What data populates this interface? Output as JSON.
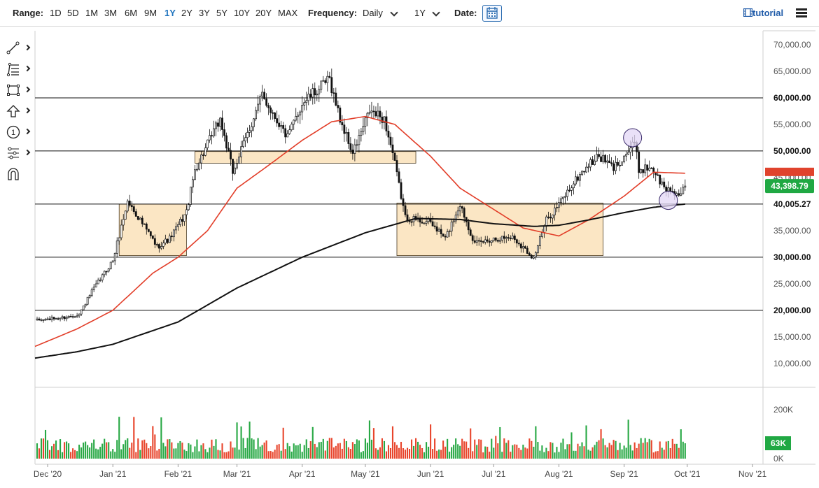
{
  "toolbar_top": {
    "range_label": "Range:",
    "ranges": [
      "1D",
      "5D",
      "1M",
      "3M",
      "6M",
      "9M",
      "1Y",
      "2Y",
      "3Y",
      "5Y",
      "10Y",
      "20Y",
      "MAX"
    ],
    "active_range": "1Y",
    "frequency_label": "Frequency:",
    "frequency_value": "Daily",
    "period_value": "1Y",
    "date_label": "Date:",
    "tutorial_label": "tutorial"
  },
  "drawing_tools": [
    "line-tool",
    "fib-tool",
    "rectangle-tool",
    "arrow-tool",
    "annotation-tool",
    "pattern-tool",
    "magnet-tool"
  ],
  "annotation_tool_label": "1",
  "colors": {
    "up": "#27a844",
    "down": "#e8452c",
    "ma50": "#e23d28",
    "ma200": "#111111",
    "box_fill": "#fbe6c4",
    "box_stroke": "#4a3a20",
    "circle_fill": "#e3d7f5",
    "circle_stroke": "#3a2b6a",
    "last_price_bg": "#20a843",
    "resistance_tag_bg": "#e0432d",
    "volume_tag_bg": "#20a843"
  },
  "chart_data": {
    "type": "candlestick",
    "title": "",
    "x_ticks": [
      "Dec '20",
      "Jan '21",
      "Feb '21",
      "Mar '21",
      "Apr '21",
      "May '21",
      "Jun '21",
      "Jul '21",
      "Aug '21",
      "Sep '21",
      "Oct '21",
      "Nov '21"
    ],
    "x_tick_dates": [
      "2020-12-01",
      "2021-01-01",
      "2021-02-01",
      "2021-03-01",
      "2021-04-01",
      "2021-05-01",
      "2021-06-01",
      "2021-07-01",
      "2021-08-01",
      "2021-09-01",
      "2021-10-01",
      "2021-11-01"
    ],
    "x_range": [
      "2020-11-25",
      "2021-11-06"
    ],
    "y_ticks": [
      "10,000.00",
      "15,000.00",
      "20,000.00",
      "25,000.00",
      "30,000.00",
      "35,000.00",
      "40,000.00",
      "45,000.00",
      "50,000.00",
      "55,000.00",
      "60,000.00",
      "65,000.00",
      "70,000.00"
    ],
    "y_tick_values": [
      10000,
      15000,
      20000,
      25000,
      30000,
      35000,
      40000,
      45000,
      50000,
      55000,
      60000,
      65000,
      70000
    ],
    "ylim": [
      5500,
      72500
    ],
    "price_path": [
      [
        "2020-11-26",
        18100
      ],
      [
        "2020-12-10",
        18700
      ],
      [
        "2020-12-16",
        19300
      ],
      [
        "2020-12-22",
        23500
      ],
      [
        "2021-01-01",
        29400
      ],
      [
        "2021-01-08",
        40500
      ],
      [
        "2021-01-14",
        37000
      ],
      [
        "2021-01-22",
        32000
      ],
      [
        "2021-01-28",
        33500
      ],
      [
        "2021-02-05",
        38500
      ],
      [
        "2021-02-09",
        46500
      ],
      [
        "2021-02-21",
        56000
      ],
      [
        "2021-02-27",
        46000
      ],
      [
        "2021-03-13",
        60500
      ],
      [
        "2021-03-25",
        52500
      ],
      [
        "2021-04-01",
        59000
      ],
      [
        "2021-04-14",
        63500
      ],
      [
        "2021-04-19",
        56000
      ],
      [
        "2021-04-25",
        49500
      ],
      [
        "2021-05-03",
        57500
      ],
      [
        "2021-05-10",
        56000
      ],
      [
        "2021-05-14",
        49500
      ],
      [
        "2021-05-20",
        37500
      ],
      [
        "2021-06-01",
        36500
      ],
      [
        "2021-06-08",
        33500
      ],
      [
        "2021-06-15",
        40000
      ],
      [
        "2021-06-22",
        32500
      ],
      [
        "2021-07-01",
        33500
      ],
      [
        "2021-07-10",
        33800
      ],
      [
        "2021-07-20",
        29900
      ],
      [
        "2021-07-26",
        37000
      ],
      [
        "2021-08-01",
        40000
      ],
      [
        "2021-08-08",
        44000
      ],
      [
        "2021-08-14",
        47000
      ],
      [
        "2021-08-20",
        49000
      ],
      [
        "2021-08-27",
        46800
      ],
      [
        "2021-09-02",
        49500
      ],
      [
        "2021-09-06",
        51500
      ],
      [
        "2021-09-08",
        46500
      ],
      [
        "2021-09-14",
        47000
      ],
      [
        "2021-09-20",
        43000
      ],
      [
        "2021-09-24",
        42500
      ],
      [
        "2021-09-28",
        41500
      ],
      [
        "2021-09-30",
        43398.79
      ]
    ],
    "ma50": [
      [
        "2020-11-25",
        13200
      ],
      [
        "2020-12-15",
        16500
      ],
      [
        "2021-01-01",
        20000
      ],
      [
        "2021-01-20",
        27000
      ],
      [
        "2021-02-01",
        30000
      ],
      [
        "2021-02-15",
        35000
      ],
      [
        "2021-03-01",
        43000
      ],
      [
        "2021-03-15",
        47000
      ],
      [
        "2021-04-01",
        52000
      ],
      [
        "2021-04-15",
        55500
      ],
      [
        "2021-05-01",
        56500
      ],
      [
        "2021-05-15",
        55000
      ],
      [
        "2021-06-01",
        49000
      ],
      [
        "2021-06-15",
        43000
      ],
      [
        "2021-07-01",
        39000
      ],
      [
        "2021-07-15",
        35500
      ],
      [
        "2021-08-01",
        34000
      ],
      [
        "2021-08-15",
        37000
      ],
      [
        "2021-09-01",
        41500
      ],
      [
        "2021-09-15",
        46000
      ],
      [
        "2021-09-30",
        45800
      ]
    ],
    "ma200": [
      [
        "2020-11-25",
        11000
      ],
      [
        "2020-12-15",
        12200
      ],
      [
        "2021-01-01",
        13600
      ],
      [
        "2021-02-01",
        17800
      ],
      [
        "2021-03-01",
        24200
      ],
      [
        "2021-04-01",
        30000
      ],
      [
        "2021-05-01",
        34600
      ],
      [
        "2021-05-25",
        37300
      ],
      [
        "2021-06-15",
        37100
      ],
      [
        "2021-07-01",
        36300
      ],
      [
        "2021-07-20",
        35800
      ],
      [
        "2021-08-01",
        36000
      ],
      [
        "2021-08-15",
        37000
      ],
      [
        "2021-09-01",
        38400
      ],
      [
        "2021-09-15",
        39400
      ],
      [
        "2021-09-30",
        40005.27
      ]
    ],
    "horizontal_lines": [
      {
        "value": 60000,
        "label": "60,000.00"
      },
      {
        "value": 50000,
        "label": "50,000.00"
      },
      {
        "value": 40005.27,
        "label": "40,005.27"
      },
      {
        "value": 30000,
        "label": "30,000.00"
      },
      {
        "value": 20000,
        "label": "20,000.00"
      }
    ],
    "boxes": [
      {
        "from": "2021-01-04",
        "to": "2021-02-05",
        "low": 30300,
        "high": 40000
      },
      {
        "from": "2021-02-09",
        "to": "2021-05-25",
        "low": 47700,
        "high": 49900
      },
      {
        "from": "2021-05-16",
        "to": "2021-08-22",
        "low": 30300,
        "high": 40200
      }
    ],
    "circles": [
      {
        "date": "2021-09-05",
        "value": 52500
      },
      {
        "date": "2021-09-22",
        "value": 40700
      }
    ],
    "last_price": {
      "value": 43398.79,
      "label": "43,398.79"
    },
    "resistance_tag": {
      "value": 45800
    },
    "volume": {
      "y_ticks": [
        "0K",
        "200K"
      ],
      "y_tick_values": [
        0,
        200000
      ],
      "ylim": [
        0,
        275000
      ],
      "last_label": "63K",
      "last_value": 63000
    }
  }
}
